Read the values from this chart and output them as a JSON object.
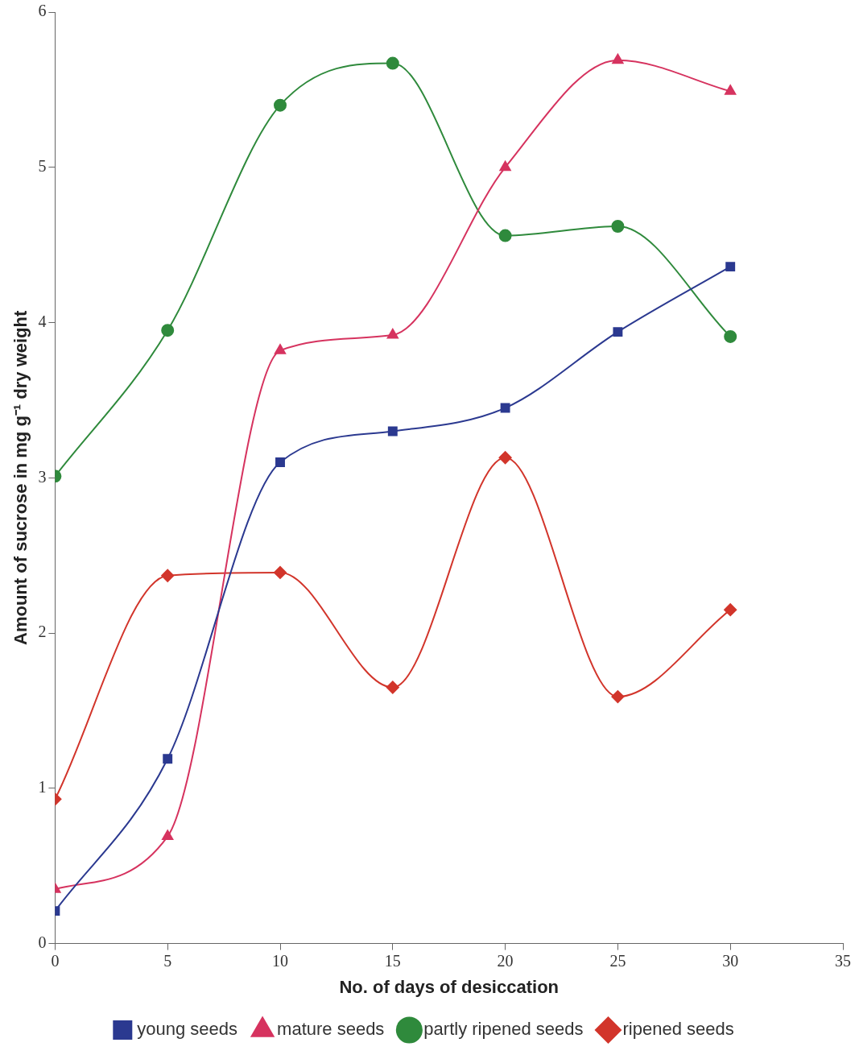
{
  "chart_data": {
    "type": "line",
    "xlabel": "No. of days of desiccation",
    "ylabel": "Amount of sucrose in mg g⁻¹ dry weight",
    "x": [
      0,
      5,
      10,
      15,
      20,
      25,
      30
    ],
    "xlim": [
      0,
      35
    ],
    "xticks": [
      0,
      5,
      10,
      15,
      20,
      25,
      30,
      35
    ],
    "ylim": [
      0,
      6
    ],
    "yticks": [
      0,
      1,
      2,
      3,
      4,
      5,
      6
    ],
    "grid": false,
    "legend": "bottom",
    "series": [
      {
        "name": "young seeds",
        "color": "#2b3990",
        "marker": "square",
        "values": [
          0.21,
          1.19,
          3.1,
          3.3,
          3.45,
          3.94,
          4.36
        ]
      },
      {
        "name": "mature seeds",
        "color": "#d6335f",
        "marker": "triangle",
        "values": [
          0.35,
          0.69,
          3.82,
          3.92,
          5.0,
          5.69,
          5.49
        ]
      },
      {
        "name": "partly ripened seeds",
        "color": "#2f8a3c",
        "marker": "circle",
        "values": [
          3.01,
          3.95,
          5.4,
          5.67,
          4.56,
          4.62,
          3.91
        ]
      },
      {
        "name": "ripened seeds",
        "color": "#d2352b",
        "marker": "diamond",
        "values": [
          0.93,
          2.37,
          2.39,
          1.65,
          3.13,
          1.59,
          2.15
        ]
      }
    ]
  }
}
